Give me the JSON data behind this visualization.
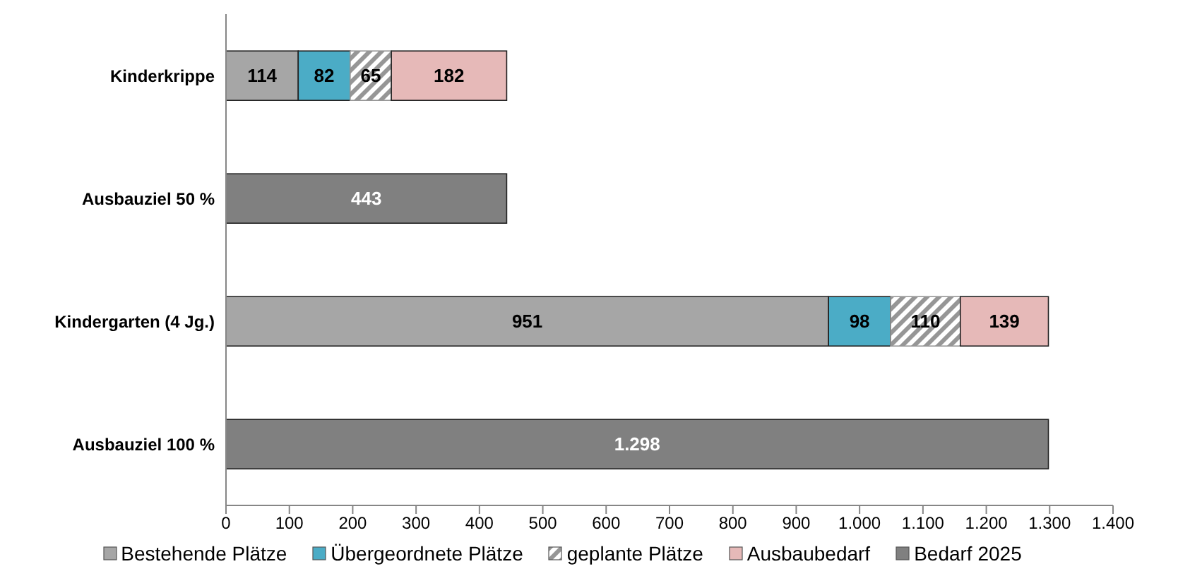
{
  "chart_data": {
    "type": "bar",
    "orientation": "horizontal",
    "stacked": true,
    "categories": [
      "Kinderkrippe",
      "Ausbauziel 50 %",
      "Kindergarten (4 Jg.)",
      "Ausbauziel 100 %"
    ],
    "series": [
      {
        "name": "Bestehende Plätze",
        "color": "#a6a6a6",
        "values": [
          114,
          null,
          951,
          null
        ],
        "value_labels": [
          "114",
          null,
          "951",
          null
        ]
      },
      {
        "name": "Übergeordnete Plätze",
        "color": "#4bacc6",
        "values": [
          82,
          null,
          98,
          null
        ],
        "value_labels": [
          "82",
          null,
          "98",
          null
        ]
      },
      {
        "name": "geplante Plätze",
        "color": "#969696",
        "values": [
          65,
          null,
          110,
          null
        ],
        "value_labels": [
          "65",
          null,
          "110",
          null
        ]
      },
      {
        "name": "Ausbaubedarf",
        "color": "#e6b9b8",
        "values": [
          182,
          null,
          139,
          null
        ],
        "value_labels": [
          "182",
          null,
          "139",
          null
        ]
      },
      {
        "name": "Bedarf 2025",
        "color": "#808080",
        "values": [
          null,
          443,
          null,
          1298
        ],
        "value_labels": [
          null,
          "443",
          null,
          "1.298"
        ]
      }
    ],
    "xlim": [
      0,
      1400
    ],
    "xticks": [
      0,
      100,
      200,
      300,
      400,
      500,
      600,
      700,
      800,
      900,
      {
        "value": 1000,
        "label": "1.000"
      },
      {
        "value": 1100,
        "label": "1.100"
      },
      {
        "value": 1200,
        "label": "1.200"
      },
      {
        "value": 1300,
        "label": "1.300"
      },
      {
        "value": 1400,
        "label": "1.400"
      }
    ],
    "grid": false,
    "legend": "bottom"
  }
}
